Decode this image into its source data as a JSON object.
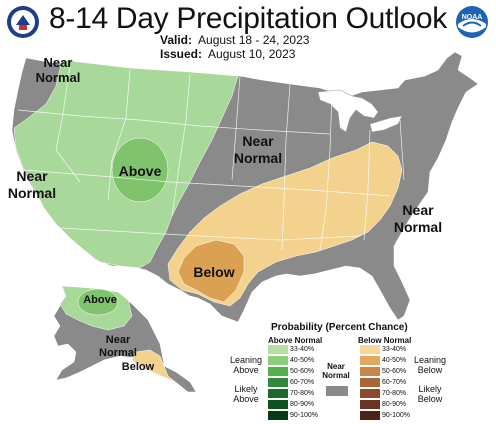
{
  "title": "8-14 Day Precipitation Outlook",
  "valid_label": "Valid:",
  "valid_value": "August 18 - 24, 2023",
  "issued_label": "Issued:",
  "issued_value": "August 10, 2023",
  "logos": {
    "left": "doc-seal-icon",
    "right": "noaa-logo-icon",
    "noaa_text": "NOAA"
  },
  "colors": {
    "near_normal": "#8a8a8a",
    "above_33": "#a9d99a",
    "above_40": "#7fc46d",
    "below_33": "#f3d28e",
    "below_40": "#dba152",
    "water": "#ffffff"
  },
  "map_labels": {
    "nw_near_normal": [
      "Near",
      "Normal"
    ],
    "west_near_normal": [
      "Near",
      "Normal"
    ],
    "central_near_normal": [
      "Near",
      "Normal"
    ],
    "east_near_normal": [
      "Near",
      "Normal"
    ],
    "above": "Above",
    "below": "Below",
    "ak_above": "Above",
    "ak_near_normal": [
      "Near",
      "Normal"
    ],
    "ak_below": "Below"
  },
  "legend": {
    "title": "Probability (Percent Chance)",
    "above_head": "Above Normal",
    "below_head": "Below Normal",
    "near_head": [
      "Near",
      "Normal"
    ],
    "above_bins": [
      "33-40%",
      "40-50%",
      "50-60%",
      "60-70%",
      "70-80%",
      "80-90%",
      "90-100%"
    ],
    "below_bins": [
      "33-40%",
      "40-50%",
      "50-60%",
      "60-70%",
      "70-80%",
      "80-90%",
      "90-100%"
    ],
    "above_colors": [
      "#b5dea5",
      "#8ccd78",
      "#51b04a",
      "#2f8a3c",
      "#1c6b2c",
      "#0f5220",
      "#073a14"
    ],
    "below_colors": [
      "#f6d79a",
      "#e3a95c",
      "#c98648",
      "#a9663a",
      "#8a4b2c",
      "#6b3420",
      "#4b2215"
    ],
    "leaning_above": [
      "Leaning",
      "Above"
    ],
    "likely_above": [
      "Likely",
      "Above"
    ],
    "leaning_below": [
      "Leaning",
      "Below"
    ],
    "likely_below": [
      "Likely",
      "Below"
    ]
  }
}
